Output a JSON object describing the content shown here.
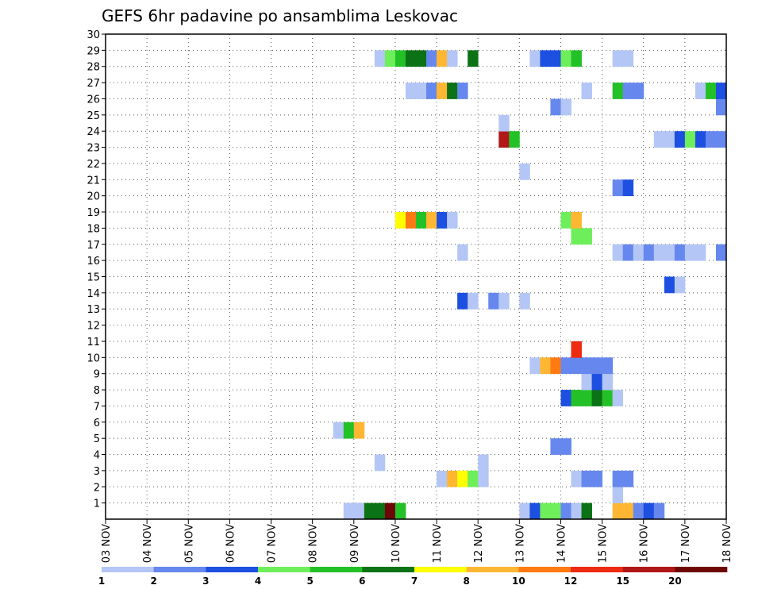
{
  "chart_data": {
    "type": "heatmap",
    "title": "GEFS 6hr padavine po ansamblima Leskovac",
    "x_tick_labels": [
      "03 NOV",
      "04 NOV",
      "05 NOV",
      "06 NOV",
      "07 NOV",
      "08 NOV",
      "09 NOV",
      "10 NOV",
      "11 NOV",
      "12 NOV",
      "13 NOV",
      "14 NOV",
      "15 NOV",
      "16 NOV",
      "17 NOV",
      "18 NOV"
    ],
    "x_range_steps": [
      0,
      60
    ],
    "y_tick_labels": [
      "1",
      "2",
      "3",
      "4",
      "5",
      "6",
      "7",
      "8",
      "9",
      "10",
      "11",
      "12",
      "13",
      "14",
      "15",
      "16",
      "17",
      "18",
      "19",
      "20",
      "21",
      "22",
      "23",
      "24",
      "25",
      "26",
      "27",
      "28",
      "29",
      "30"
    ],
    "y_range": [
      0,
      30
    ],
    "grid": true,
    "legend_position": "bottom",
    "legend_labels": [
      "1",
      "2",
      "3",
      "4",
      "5",
      "6",
      "7",
      "8",
      "10",
      "12",
      "15",
      "20"
    ],
    "legend_colors": [
      "#b4c6f5",
      "#6688ee",
      "#1d4fe0",
      "#6eee5a",
      "#23c127",
      "#0c7216",
      "#ffff00",
      "#ffb733",
      "#ff7a12",
      "#ee2a12",
      "#b01818",
      "#6e0606"
    ],
    "cells_note": "each cell: [ensemble member row, 6h step index from 03 NOV 00UTC, precipitation class index]",
    "cells": [
      [
        0,
        23,
        0
      ],
      [
        0,
        24,
        0
      ],
      [
        0,
        25,
        5
      ],
      [
        0,
        26,
        5
      ],
      [
        0,
        27,
        11
      ],
      [
        0,
        28,
        4
      ],
      [
        0,
        40,
        0
      ],
      [
        0,
        41,
        2
      ],
      [
        0,
        42,
        3
      ],
      [
        0,
        43,
        3
      ],
      [
        0,
        44,
        1
      ],
      [
        0,
        45,
        0
      ],
      [
        0,
        46,
        5
      ],
      [
        0,
        49,
        7
      ],
      [
        0,
        50,
        7
      ],
      [
        0,
        51,
        1
      ],
      [
        0,
        52,
        2
      ],
      [
        0,
        53,
        1
      ],
      [
        1,
        49,
        0
      ],
      [
        2,
        32,
        0
      ],
      [
        2,
        33,
        7
      ],
      [
        2,
        34,
        6
      ],
      [
        2,
        35,
        3
      ],
      [
        2,
        36,
        0
      ],
      [
        2,
        45,
        0
      ],
      [
        2,
        46,
        1
      ],
      [
        2,
        47,
        1
      ],
      [
        2,
        49,
        1
      ],
      [
        2,
        50,
        1
      ],
      [
        3,
        26,
        0
      ],
      [
        3,
        36,
        0
      ],
      [
        4,
        43,
        1
      ],
      [
        4,
        44,
        1
      ],
      [
        5,
        22,
        0
      ],
      [
        5,
        23,
        4
      ],
      [
        5,
        24,
        7
      ],
      [
        7,
        44,
        2
      ],
      [
        7,
        45,
        4
      ],
      [
        7,
        46,
        4
      ],
      [
        7,
        47,
        5
      ],
      [
        7,
        48,
        4
      ],
      [
        7,
        49,
        0
      ],
      [
        8,
        46,
        0
      ],
      [
        8,
        47,
        2
      ],
      [
        8,
        48,
        0
      ],
      [
        9,
        41,
        0
      ],
      [
        9,
        42,
        7
      ],
      [
        9,
        43,
        8
      ],
      [
        9,
        44,
        1
      ],
      [
        9,
        45,
        1
      ],
      [
        9,
        46,
        1
      ],
      [
        9,
        47,
        1
      ],
      [
        9,
        48,
        1
      ],
      [
        10,
        45,
        9
      ],
      [
        13,
        34,
        2
      ],
      [
        13,
        35,
        0
      ],
      [
        13,
        37,
        1
      ],
      [
        13,
        38,
        0
      ],
      [
        13,
        40,
        0
      ],
      [
        14,
        54,
        2
      ],
      [
        14,
        55,
        0
      ],
      [
        16,
        34,
        0
      ],
      [
        16,
        49,
        0
      ],
      [
        16,
        50,
        1
      ],
      [
        16,
        51,
        0
      ],
      [
        16,
        52,
        1
      ],
      [
        16,
        53,
        0
      ],
      [
        16,
        54,
        0
      ],
      [
        16,
        55,
        1
      ],
      [
        16,
        56,
        0
      ],
      [
        16,
        57,
        0
      ],
      [
        16,
        59,
        1
      ],
      [
        17,
        45,
        3
      ],
      [
        17,
        46,
        3
      ],
      [
        18,
        28,
        6
      ],
      [
        18,
        29,
        8
      ],
      [
        18,
        30,
        4
      ],
      [
        18,
        31,
        7
      ],
      [
        18,
        32,
        2
      ],
      [
        18,
        33,
        0
      ],
      [
        18,
        44,
        3
      ],
      [
        18,
        45,
        7
      ],
      [
        20,
        49,
        1
      ],
      [
        20,
        50,
        2
      ],
      [
        21,
        40,
        0
      ],
      [
        23,
        38,
        10
      ],
      [
        23,
        39,
        4
      ],
      [
        23,
        53,
        0
      ],
      [
        23,
        54,
        0
      ],
      [
        23,
        55,
        2
      ],
      [
        23,
        56,
        3
      ],
      [
        23,
        57,
        2
      ],
      [
        23,
        58,
        1
      ],
      [
        23,
        59,
        1
      ],
      [
        24,
        38,
        0
      ],
      [
        25,
        43,
        1
      ],
      [
        25,
        44,
        0
      ],
      [
        25,
        59,
        1
      ],
      [
        26,
        29,
        0
      ],
      [
        26,
        30,
        0
      ],
      [
        26,
        31,
        1
      ],
      [
        26,
        32,
        7
      ],
      [
        26,
        33,
        5
      ],
      [
        26,
        34,
        1
      ],
      [
        26,
        46,
        0
      ],
      [
        26,
        49,
        4
      ],
      [
        26,
        50,
        1
      ],
      [
        26,
        51,
        1
      ],
      [
        26,
        57,
        0
      ],
      [
        26,
        58,
        4
      ],
      [
        26,
        59,
        2
      ],
      [
        28,
        26,
        0
      ],
      [
        28,
        27,
        3
      ],
      [
        28,
        28,
        4
      ],
      [
        28,
        29,
        5
      ],
      [
        28,
        30,
        5
      ],
      [
        28,
        31,
        1
      ],
      [
        28,
        32,
        7
      ],
      [
        28,
        33,
        0
      ],
      [
        28,
        35,
        5
      ],
      [
        28,
        41,
        0
      ],
      [
        28,
        42,
        2
      ],
      [
        28,
        43,
        2
      ],
      [
        28,
        44,
        3
      ],
      [
        28,
        45,
        4
      ],
      [
        28,
        49,
        0
      ],
      [
        28,
        50,
        0
      ]
    ]
  }
}
